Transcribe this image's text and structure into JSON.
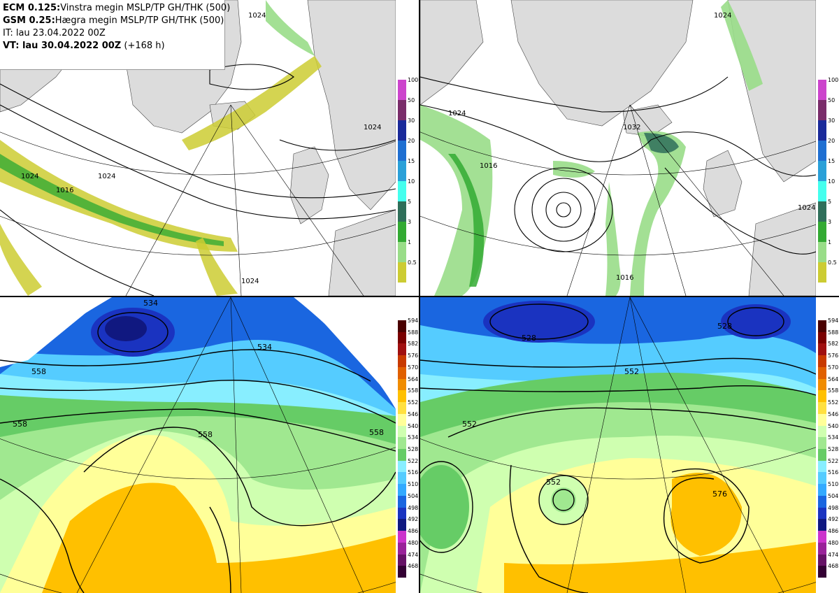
{
  "header": {
    "line1_model": "ECM 0.125:",
    "line1_desc": "Vinstra megin MSLP/TP GH/THK (500)",
    "line2_model": "GSM 0.25:",
    "line2_desc": "Hægra megin MSLP/TP GH/THK (500)",
    "line3": "IT: lau 23.04.2022 00Z",
    "line4_vt": "VT: lau 30.04.2022 00Z",
    "line4_lead": "(+168 h)"
  },
  "colors": {
    "land": "#dcdcdc",
    "ocean": "#ffffff",
    "isobar": "#000000"
  },
  "precip_scale": {
    "labels": [
      "100",
      "50",
      "30",
      "20",
      "15",
      "10",
      "5",
      "3",
      "1",
      "0.5"
    ],
    "colors": [
      "#cc44cc",
      "#7a2d6a",
      "#1a2a9a",
      "#1f6fd1",
      "#2aa0d8",
      "#44ffee",
      "#2f6f5a",
      "#33aa33",
      "#99dd88",
      "#cccc33"
    ]
  },
  "thk_scale": {
    "labels": [
      "594",
      "588",
      "582",
      "576",
      "570",
      "564",
      "558",
      "552",
      "546",
      "540",
      "534",
      "528",
      "522",
      "516",
      "510",
      "504",
      "498",
      "492",
      "486",
      "480",
      "474",
      "468"
    ],
    "colors": [
      "#4a0000",
      "#7a0000",
      "#a01010",
      "#c83a00",
      "#e06000",
      "#f08c00",
      "#ffc000",
      "#ffe040",
      "#ffff99",
      "#cfffb0",
      "#a0e890",
      "#66cc66",
      "#88eeff",
      "#55ccff",
      "#33aaff",
      "#1a66e0",
      "#1a33c0",
      "#101880",
      "#cc33cc",
      "#992299",
      "#661166",
      "#330033"
    ]
  },
  "map_labels": {
    "tl": [
      "1024",
      "1024",
      "1024",
      "1016",
      "1024",
      "1024"
    ],
    "tr": [
      "1024",
      "1016",
      "1024",
      "1032",
      "1024",
      "1016"
    ],
    "bl": [
      "534",
      "534",
      "558",
      "558",
      "558",
      "558"
    ],
    "br": [
      "528",
      "528",
      "552",
      "552",
      "552",
      "576"
    ]
  }
}
